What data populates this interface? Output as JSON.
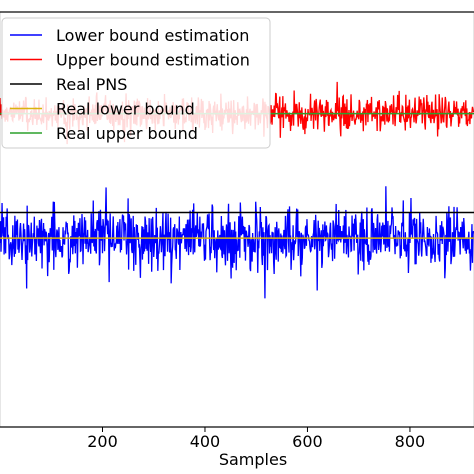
{
  "chart_data": {
    "type": "line",
    "title": "",
    "xlabel": "Samples",
    "ylabel": "",
    "xlim": [
      0,
      925
    ],
    "ylim": [
      0,
      1
    ],
    "x_ticks": [
      200,
      400,
      600,
      800
    ],
    "x_tick_labels": [
      "200",
      "400",
      "600",
      "800"
    ],
    "grid": false,
    "legend_placement": "upper-left",
    "n_samples": 925,
    "series": [
      {
        "name": "Lower bound estimation",
        "color": "#0000ff",
        "kind": "noisy",
        "mean": 0.455,
        "spread": 0.062,
        "range": [
          0.31,
          0.58
        ]
      },
      {
        "name": "Upper bound estimation",
        "color": "#ff0000",
        "kind": "noisy",
        "mean": 0.755,
        "spread": 0.035,
        "range": [
          0.67,
          0.84
        ]
      },
      {
        "name": "Real PNS",
        "color": "#000000",
        "kind": "constant",
        "value": 0.517
      },
      {
        "name": "Real lower bound",
        "color": "#dbb40c",
        "kind": "constant",
        "value": 0.455
      },
      {
        "name": "Real upper bound",
        "color": "#2ca02c",
        "kind": "constant",
        "value": 0.755
      }
    ]
  }
}
